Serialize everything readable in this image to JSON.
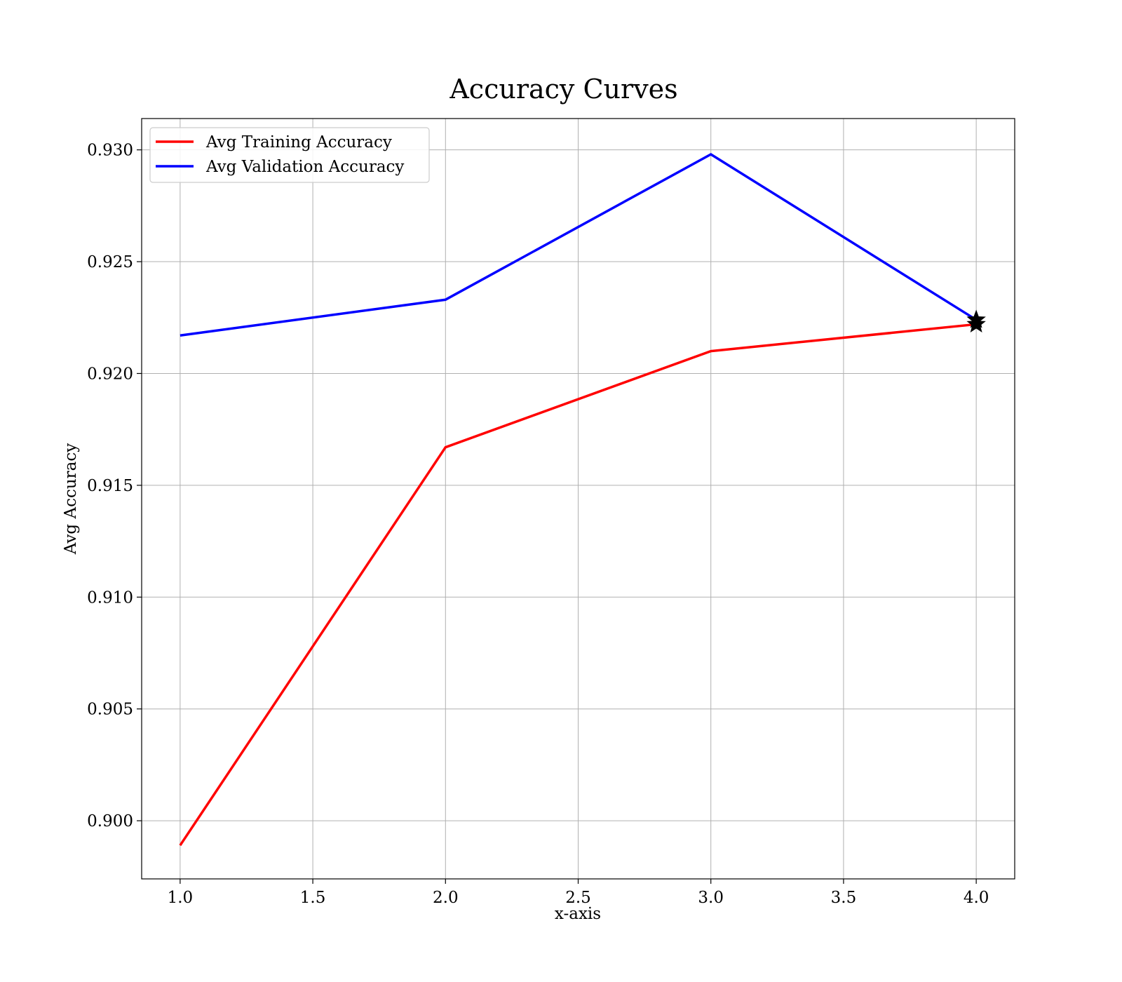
{
  "chart_data": {
    "type": "line",
    "title": "Accuracy Curves",
    "xlabel": "x-axis",
    "ylabel": "Avg Accuracy",
    "xlim": [
      0.855,
      4.145
    ],
    "ylim": [
      0.8974,
      0.9314
    ],
    "xticks": [
      1.0,
      1.5,
      2.0,
      2.5,
      3.0,
      3.5,
      4.0
    ],
    "xtick_labels": [
      "1.0",
      "1.5",
      "2.0",
      "2.5",
      "3.0",
      "3.5",
      "4.0"
    ],
    "yticks": [
      0.9,
      0.905,
      0.91,
      0.915,
      0.92,
      0.925,
      0.93
    ],
    "ytick_labels": [
      "0.900",
      "0.905",
      "0.910",
      "0.915",
      "0.920",
      "0.925",
      "0.930"
    ],
    "grid": true,
    "legend_position": "top-left",
    "x": [
      1.0,
      2.0,
      3.0,
      4.0
    ],
    "series": [
      {
        "name": "Avg Training Accuracy",
        "color": "#ff0000",
        "values": [
          0.8989,
          0.9167,
          0.921,
          0.9222
        ],
        "marker_at_last": "star"
      },
      {
        "name": "Avg Validation Accuracy",
        "color": "#0000ff",
        "values": [
          0.9217,
          0.9233,
          0.9298,
          0.9224
        ],
        "marker_at_last": "star"
      }
    ]
  }
}
